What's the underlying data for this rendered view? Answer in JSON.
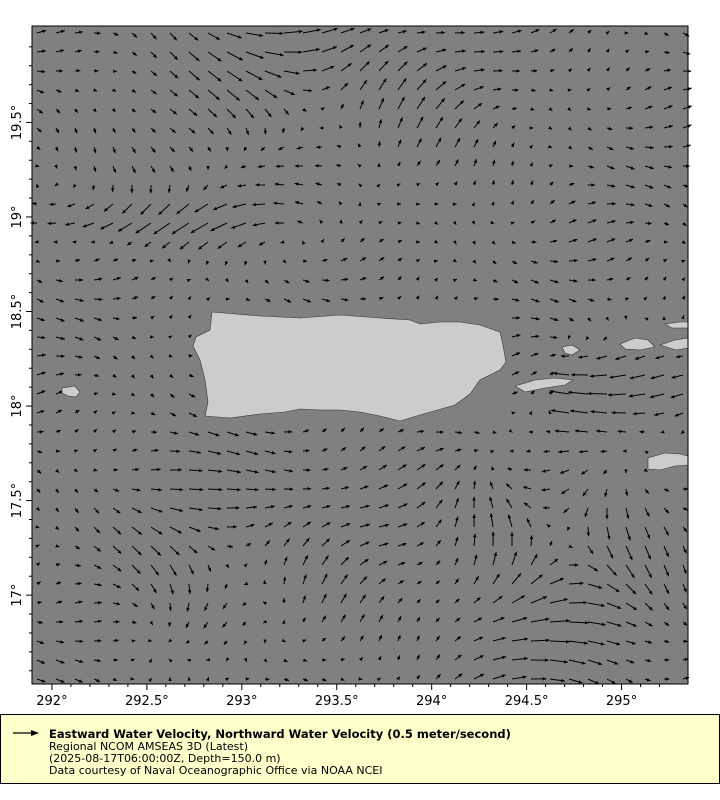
{
  "map": {
    "lon_range": [
      291.895,
      295.35
    ],
    "lat_range": [
      16.53,
      20.01
    ],
    "x_ticks": [
      "292°",
      "292.5°",
      "293°",
      "293.5°",
      "294°",
      "294.5°",
      "295°"
    ],
    "x_tick_values": [
      292,
      292.5,
      293,
      293.5,
      294,
      294.5,
      295
    ],
    "y_ticks": [
      "19.5°",
      "19°",
      "18.5°",
      "18°",
      "17.5°",
      "17°"
    ],
    "y_tick_values": [
      19.5,
      19,
      18.5,
      18,
      17.5,
      17
    ],
    "ocean_color": "#808080",
    "land_color": "#cccccc",
    "vector_color": "#000000"
  },
  "legend": {
    "title": "Eastward Water Velocity, Northward Water Velocity (0.5 meter/second)",
    "dataset": "Regional NCOM AMSEAS 3D (Latest)",
    "constraints": "(2025-08-17T06:00:00Z, Depth=150.0 m)",
    "credit": "Data courtesy of Naval Oceanographic Office via NOAA NCEI",
    "background": "#ffffcc"
  }
}
